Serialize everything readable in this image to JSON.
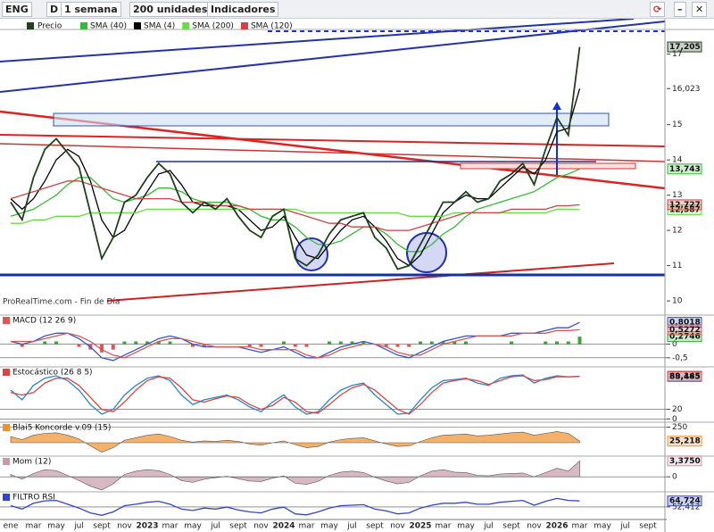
{
  "toolbar": {
    "symbol": "ENG",
    "period_letter": "D",
    "period": "1 semana",
    "units": "200 unidades",
    "indicators": "Indicadores"
  },
  "chart_data": {
    "type": "stock",
    "footer": "ProRealTime.com - Fin de Día",
    "categories": [
      "ene",
      null,
      "mar",
      null,
      "may",
      null,
      "jul",
      null,
      "sept",
      null,
      "nov",
      null,
      "2023",
      null,
      "mar",
      null,
      "may",
      null,
      "jul",
      null,
      "sept",
      null,
      "nov",
      null,
      "2024",
      null,
      "mar",
      null,
      "may",
      null,
      "jul",
      null,
      "sept",
      null,
      "nov",
      null,
      "2025",
      null,
      "mar",
      null,
      "may",
      null,
      "jul",
      null,
      "sept",
      null,
      "nov",
      null,
      "2026",
      null,
      "mar",
      null,
      "may",
      null,
      "jul",
      null,
      "sept"
    ],
    "price": {
      "title": "Precio",
      "ylim": [
        9.8,
        17.65
      ],
      "yticks": [
        10,
        11,
        12,
        13,
        14,
        15,
        {
          "value": 16.023,
          "label": "16,023"
        },
        17
      ],
      "series": [
        {
          "name": "SMA (40)",
          "color": "#33bb33",
          "last_label": "13,743",
          "values": [
            12.4,
            12.5,
            12.6,
            12.8,
            13.0,
            13.3,
            13.5,
            13.5,
            13.2,
            12.9,
            12.8,
            12.9,
            13.0,
            13.2,
            13.2,
            13.1,
            12.9,
            12.8,
            12.8,
            12.8,
            12.7,
            12.6,
            12.4,
            12.3,
            12.3,
            12.1,
            11.8,
            11.6,
            11.6,
            11.7,
            11.9,
            12.1,
            12.1,
            11.9,
            11.6,
            11.4,
            11.4,
            11.6,
            11.9,
            12.1,
            12.4,
            12.6,
            12.7,
            12.8,
            12.9,
            13.0,
            13.1,
            13.3,
            13.5,
            13.6,
            13.743
          ]
        },
        {
          "name": "SMA (4)",
          "color": "#000000",
          "values": [
            12.9,
            12.6,
            12.9,
            13.4,
            14.0,
            14.3,
            14.1,
            13.4,
            12.3,
            11.8,
            12.0,
            12.6,
            13.1,
            13.6,
            13.7,
            13.3,
            12.8,
            12.7,
            12.7,
            12.7,
            12.6,
            12.3,
            12.0,
            12.1,
            12.4,
            11.8,
            11.3,
            11.2,
            11.6,
            12.0,
            12.3,
            12.4,
            12.1,
            11.7,
            11.2,
            11.0,
            11.3,
            11.9,
            12.5,
            12.8,
            13.0,
            12.9,
            12.9,
            13.2,
            13.5,
            13.8,
            13.6,
            14.0,
            14.8,
            14.9,
            16.023
          ]
        },
        {
          "name": "SMA (200)",
          "color": "#66dd44",
          "last_label": "12,587",
          "values": [
            12.2,
            12.2,
            12.3,
            12.3,
            12.4,
            12.4,
            12.4,
            12.5,
            12.5,
            12.5,
            12.5,
            12.5,
            12.6,
            12.6,
            12.6,
            12.6,
            12.6,
            12.6,
            12.6,
            12.6,
            12.6,
            12.6,
            12.6,
            12.6,
            12.6,
            12.6,
            12.5,
            12.5,
            12.5,
            12.5,
            12.5,
            12.5,
            12.5,
            12.5,
            12.5,
            12.4,
            12.4,
            12.4,
            12.4,
            12.5,
            12.5,
            12.5,
            12.5,
            12.5,
            12.5,
            12.5,
            12.5,
            12.5,
            12.6,
            12.6,
            12.587
          ]
        },
        {
          "name": "SMA (120)",
          "color": "#cc4444",
          "last_label": "12,727",
          "values": [
            12.9,
            13.0,
            13.1,
            13.2,
            13.3,
            13.4,
            13.4,
            13.3,
            13.2,
            13.1,
            13.0,
            12.9,
            12.9,
            12.9,
            12.9,
            12.8,
            12.8,
            12.8,
            12.7,
            12.7,
            12.7,
            12.6,
            12.6,
            12.6,
            12.6,
            12.5,
            12.4,
            12.3,
            12.2,
            12.2,
            12.1,
            12.1,
            12.1,
            12.0,
            12.0,
            12.0,
            12.1,
            12.2,
            12.3,
            12.4,
            12.5,
            12.5,
            12.5,
            12.5,
            12.6,
            12.6,
            12.6,
            12.6,
            12.7,
            12.7,
            12.727
          ]
        },
        {
          "name": "Precio",
          "color": "#1f3f1f",
          "last_label": "17,205",
          "values": [
            12.8,
            12.3,
            13.5,
            14.3,
            14.6,
            14.2,
            13.8,
            12.5,
            11.2,
            11.8,
            12.8,
            13.0,
            13.5,
            13.9,
            13.6,
            12.8,
            12.5,
            12.8,
            12.6,
            12.9,
            12.4,
            12.0,
            11.8,
            12.4,
            12.6,
            11.2,
            11.0,
            11.3,
            11.9,
            12.3,
            12.4,
            12.5,
            11.8,
            11.5,
            10.9,
            11.0,
            11.6,
            12.2,
            12.8,
            12.8,
            13.1,
            12.8,
            12.9,
            13.4,
            13.6,
            13.9,
            13.3,
            14.3,
            15.2,
            14.7,
            17.205
          ]
        }
      ]
    },
    "panels": [
      {
        "title": "MACD (12 26 9)",
        "ylim": [
          -0.8,
          1.0
        ],
        "yticks": [
          0,
          {
            "value": -0.5,
            "label": "-0,5"
          }
        ],
        "series": [
          {
            "kind": "bars",
            "color": "#33aa33",
            "last_label": "0,2746",
            "values": [
              0.0,
              -0.1,
              0.0,
              0.1,
              0.1,
              0.0,
              -0.1,
              -0.2,
              -0.3,
              -0.2,
              0.1,
              0.1,
              0.1,
              0.1,
              0.1,
              0.0,
              -0.1,
              -0.1,
              0.0,
              0.0,
              0.0,
              -0.1,
              -0.1,
              0.0,
              0.1,
              -0.1,
              -0.1,
              0.0,
              0.1,
              0.1,
              0.1,
              0.1,
              0.0,
              -0.1,
              -0.1,
              -0.1,
              0.1,
              0.1,
              0.1,
              0.1,
              0.1,
              0.0,
              0.0,
              0.0,
              0.1,
              0.0,
              0.0,
              0.1,
              0.1,
              0.1,
              0.2746
            ]
          },
          {
            "kind": "line",
            "color": "#3355cc",
            "last_label": "0,8018",
            "values": [
              0.1,
              0.0,
              0.1,
              0.3,
              0.4,
              0.4,
              0.2,
              -0.1,
              -0.5,
              -0.6,
              -0.4,
              -0.2,
              0.0,
              0.2,
              0.3,
              0.2,
              0.0,
              -0.1,
              -0.1,
              -0.1,
              -0.1,
              -0.2,
              -0.3,
              -0.2,
              -0.1,
              -0.3,
              -0.5,
              -0.5,
              -0.3,
              -0.1,
              0.0,
              0.1,
              0.0,
              -0.2,
              -0.4,
              -0.5,
              -0.3,
              -0.1,
              0.1,
              0.2,
              0.3,
              0.3,
              0.3,
              0.3,
              0.4,
              0.4,
              0.4,
              0.5,
              0.6,
              0.6,
              0.8018
            ]
          },
          {
            "kind": "line",
            "color": "#dd5555",
            "last_label": "0,5272",
            "values": [
              0.1,
              0.1,
              0.1,
              0.2,
              0.3,
              0.4,
              0.3,
              0.1,
              -0.2,
              -0.4,
              -0.5,
              -0.3,
              -0.1,
              0.1,
              0.2,
              0.2,
              0.1,
              0.0,
              -0.1,
              -0.1,
              -0.1,
              -0.1,
              -0.2,
              -0.2,
              -0.2,
              -0.2,
              -0.4,
              -0.5,
              -0.4,
              -0.2,
              -0.1,
              0.0,
              0.0,
              -0.1,
              -0.3,
              -0.4,
              -0.4,
              -0.2,
              0.0,
              0.1,
              0.2,
              0.3,
              0.3,
              0.3,
              0.3,
              0.4,
              0.4,
              0.4,
              0.5,
              0.5,
              0.5272
            ]
          }
        ]
      },
      {
        "title": "Estocástico (26 8 5)",
        "ylim": [
          -5,
          105
        ],
        "yticks": [
          0,
          20
        ],
        "series": [
          {
            "kind": "line",
            "color": "#2288cc",
            "last_label": "89,145",
            "values": [
              60,
              40,
              70,
              85,
              90,
              80,
              60,
              30,
              10,
              20,
              50,
              70,
              85,
              90,
              80,
              50,
              30,
              40,
              45,
              50,
              40,
              25,
              15,
              35,
              50,
              25,
              10,
              15,
              40,
              60,
              70,
              75,
              50,
              30,
              10,
              12,
              40,
              65,
              80,
              82,
              85,
              75,
              70,
              85,
              90,
              92,
              75,
              85,
              90,
              88,
              89.145
            ]
          },
          {
            "kind": "line",
            "color": "#dd4444",
            "last_label": "88,485",
            "values": [
              55,
              50,
              55,
              75,
              85,
              85,
              70,
              45,
              20,
              15,
              35,
              60,
              80,
              88,
              85,
              65,
              40,
              35,
              42,
              48,
              45,
              30,
              20,
              28,
              45,
              35,
              15,
              12,
              30,
              50,
              65,
              72,
              60,
              40,
              20,
              10,
              30,
              55,
              75,
              80,
              84,
              80,
              72,
              80,
              88,
              90,
              80,
              82,
              88,
              88,
              88.485
            ]
          }
        ]
      },
      {
        "title": "Blai5 Koncorde v.09 (15)",
        "ylim": [
          -200,
          300
        ],
        "yticks": [
          250
        ],
        "series": [
          {
            "kind": "area",
            "color": "#f0902a",
            "last_label": "25,218",
            "values": [
              100,
              50,
              120,
              150,
              160,
              120,
              60,
              -50,
              -150,
              -80,
              40,
              80,
              120,
              140,
              100,
              40,
              10,
              30,
              20,
              40,
              20,
              -20,
              -40,
              0,
              30,
              -30,
              -80,
              -60,
              10,
              50,
              70,
              80,
              30,
              -20,
              -60,
              -50,
              20,
              80,
              120,
              130,
              140,
              110,
              120,
              140,
              160,
              170,
              120,
              150,
              180,
              150,
              25.218
            ]
          }
        ]
      },
      {
        "title": "Mom (12)",
        "ylim": [
          -3,
          4
        ],
        "yticks": [
          0
        ],
        "series": [
          {
            "kind": "area",
            "color": "#c89aa8",
            "last_label": "3,3750",
            "values": [
              0.5,
              -0.5,
              0.7,
              1.5,
              1.3,
              0.3,
              -0.8,
              -2.0,
              -2.8,
              -1.5,
              0.5,
              1.2,
              1.5,
              1.3,
              0.5,
              -0.8,
              -1.2,
              -0.5,
              -0.2,
              0.1,
              -0.4,
              -0.9,
              -1.0,
              -0.3,
              0.2,
              -1.4,
              -1.6,
              -1.0,
              0.3,
              1.0,
              1.2,
              0.9,
              -0.1,
              -0.9,
              -1.5,
              -1.2,
              0.2,
              1.2,
              1.5,
              1.0,
              0.9,
              0.3,
              0.2,
              0.6,
              0.7,
              0.8,
              0.0,
              0.9,
              1.8,
              1.2,
              3.375
            ]
          }
        ]
      },
      {
        "title": "FILTRO RSI",
        "ylim": [
          30,
          80
        ],
        "yticks": [
          {
            "value": 52.412,
            "label": "52,412"
          }
        ],
        "series": [
          {
            "kind": "line",
            "color": "#3344cc",
            "last_label": "64,724",
            "values": [
              55,
              48,
              60,
              65,
              66,
              58,
              50,
              40,
              35,
              42,
              55,
              58,
              62,
              64,
              58,
              48,
              45,
              50,
              48,
              52,
              46,
              42,
              40,
              48,
              52,
              38,
              36,
              42,
              50,
              55,
              56,
              57,
              48,
              44,
              38,
              40,
              50,
              56,
              60,
              60,
              62,
              58,
              58,
              62,
              64,
              66,
              56,
              64,
              70,
              66,
              64.724
            ]
          }
        ]
      }
    ]
  }
}
